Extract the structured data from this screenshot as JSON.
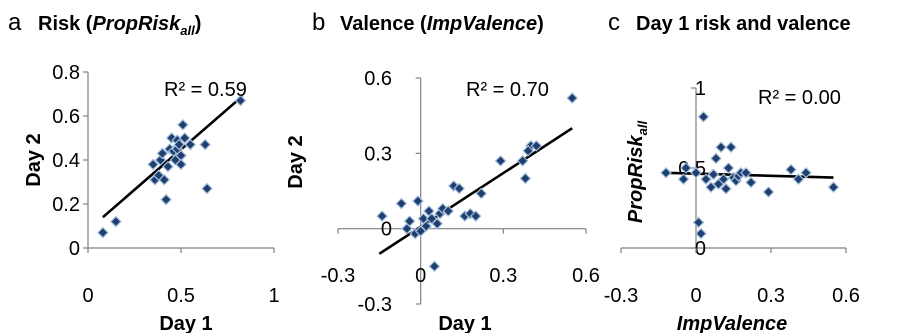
{
  "charts": [
    {
      "id": "a",
      "type": "scatter",
      "letter": "a",
      "title": "Risk (",
      "title_italic": "PropRisk",
      "title_sub": "all",
      "title_end": ")",
      "xlabel": "Day 1",
      "ylabel": "Day 2",
      "ylabel_italic": false,
      "xlim": [
        0,
        1
      ],
      "ylim": [
        0,
        0.8
      ],
      "xticks": [
        0,
        0.5,
        1
      ],
      "yticks": [
        0,
        0.2,
        0.4,
        0.6,
        0.8
      ],
      "r2": "R² = 0.59",
      "trend": [
        [
          0.08,
          0.14
        ],
        [
          0.83,
          0.69
        ]
      ],
      "points": [
        [
          0.08,
          0.07
        ],
        [
          0.15,
          0.12
        ],
        [
          0.35,
          0.38
        ],
        [
          0.36,
          0.31
        ],
        [
          0.38,
          0.33
        ],
        [
          0.39,
          0.4
        ],
        [
          0.4,
          0.43
        ],
        [
          0.41,
          0.31
        ],
        [
          0.42,
          0.22
        ],
        [
          0.43,
          0.37
        ],
        [
          0.44,
          0.45
        ],
        [
          0.45,
          0.5
        ],
        [
          0.46,
          0.44
        ],
        [
          0.47,
          0.4
        ],
        [
          0.48,
          0.49
        ],
        [
          0.48,
          0.45
        ],
        [
          0.49,
          0.47
        ],
        [
          0.5,
          0.42
        ],
        [
          0.5,
          0.38
        ],
        [
          0.51,
          0.56
        ],
        [
          0.52,
          0.5
        ],
        [
          0.55,
          0.47
        ],
        [
          0.63,
          0.47
        ],
        [
          0.64,
          0.27
        ],
        [
          0.82,
          0.67
        ]
      ]
    },
    {
      "id": "b",
      "type": "scatter",
      "letter": "b",
      "title": "Valence (",
      "title_italic": "ImpValence",
      "title_sub": "",
      "title_end": ")",
      "xlabel": "Day 1",
      "ylabel": "Day 2",
      "ylabel_italic": false,
      "xlim": [
        -0.3,
        0.6
      ],
      "ylim": [
        -0.3,
        0.6
      ],
      "xticks": [
        -0.3,
        0,
        0.3,
        0.6
      ],
      "yticks": [
        -0.3,
        0,
        0.3,
        0.6
      ],
      "r2": "R² = 0.70",
      "trend": [
        [
          -0.15,
          -0.1
        ],
        [
          0.55,
          0.4
        ]
      ],
      "points": [
        [
          -0.14,
          0.05
        ],
        [
          -0.07,
          0.1
        ],
        [
          -0.05,
          0.0
        ],
        [
          -0.04,
          0.03
        ],
        [
          -0.02,
          -0.02
        ],
        [
          -0.01,
          0.11
        ],
        [
          0.0,
          -0.01
        ],
        [
          0.01,
          0.04
        ],
        [
          0.02,
          0.01
        ],
        [
          0.03,
          0.07
        ],
        [
          0.04,
          0.04
        ],
        [
          0.05,
          -0.15
        ],
        [
          0.06,
          0.02
        ],
        [
          0.07,
          0.06
        ],
        [
          0.08,
          0.08
        ],
        [
          0.1,
          0.07
        ],
        [
          0.12,
          0.17
        ],
        [
          0.14,
          0.16
        ],
        [
          0.16,
          0.05
        ],
        [
          0.18,
          0.06
        ],
        [
          0.2,
          0.05
        ],
        [
          0.22,
          0.14
        ],
        [
          0.29,
          0.27
        ],
        [
          0.37,
          0.27
        ],
        [
          0.38,
          0.2
        ],
        [
          0.4,
          0.33
        ],
        [
          0.42,
          0.33
        ],
        [
          0.55,
          0.52
        ],
        [
          0.39,
          0.31
        ]
      ]
    },
    {
      "id": "c",
      "type": "scatter",
      "letter": "c",
      "title": "Day 1 risk and valence",
      "title_italic": "",
      "title_sub": "",
      "title_end": "",
      "xlabel": "ImpValence",
      "xlabel_italic": true,
      "ylabel": "PropRisk",
      "ylabel_sub": "all",
      "ylabel_italic": true,
      "xlim": [
        -0.3,
        0.6
      ],
      "ylim": [
        0,
        1
      ],
      "xticks": [
        -0.3,
        0,
        0.3,
        0.6
      ],
      "yticks": [
        0,
        0.5,
        1
      ],
      "r2": "R² = 0.00",
      "trend": [
        [
          -0.12,
          0.47
        ],
        [
          0.55,
          0.44
        ]
      ],
      "points": [
        [
          -0.12,
          0.47
        ],
        [
          -0.05,
          0.43
        ],
        [
          -0.04,
          0.5
        ],
        [
          0.0,
          0.47
        ],
        [
          0.01,
          0.16
        ],
        [
          0.02,
          0.09
        ],
        [
          0.03,
          0.82
        ],
        [
          0.04,
          0.43
        ],
        [
          0.06,
          0.38
        ],
        [
          0.07,
          0.46
        ],
        [
          0.08,
          0.56
        ],
        [
          0.09,
          0.4
        ],
        [
          0.1,
          0.63
        ],
        [
          0.11,
          0.43
        ],
        [
          0.12,
          0.37
        ],
        [
          0.13,
          0.5
        ],
        [
          0.14,
          0.63
        ],
        [
          0.15,
          0.44
        ],
        [
          0.16,
          0.42
        ],
        [
          0.17,
          0.45
        ],
        [
          0.18,
          0.47
        ],
        [
          0.2,
          0.47
        ],
        [
          0.22,
          0.41
        ],
        [
          0.29,
          0.35
        ],
        [
          0.38,
          0.49
        ],
        [
          0.41,
          0.43
        ],
        [
          0.44,
          0.47
        ],
        [
          0.55,
          0.38
        ]
      ]
    }
  ]
}
